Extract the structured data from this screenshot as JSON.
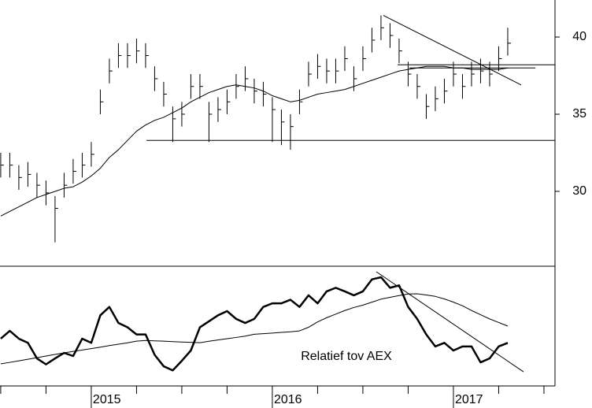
{
  "chart_data": [
    {
      "type": "ohlc",
      "x": [
        2014.5,
        2014.55,
        2014.6,
        2014.65,
        2014.7,
        2014.75,
        2014.8,
        2014.85,
        2014.9,
        2014.95,
        2015.0,
        2015.05,
        2015.1,
        2015.15,
        2015.2,
        2015.25,
        2015.3,
        2015.35,
        2015.4,
        2015.45,
        2015.5,
        2015.55,
        2015.6,
        2015.65,
        2015.7,
        2015.75,
        2015.8,
        2015.85,
        2015.9,
        2015.95,
        2016.0,
        2016.05,
        2016.1,
        2016.15,
        2016.2,
        2016.25,
        2016.3,
        2016.35,
        2016.4,
        2016.45,
        2016.5,
        2016.55,
        2016.6,
        2016.65,
        2016.7,
        2016.75,
        2016.8,
        2016.85,
        2016.9,
        2016.95,
        2017.0,
        2017.05,
        2017.1,
        2017.15,
        2017.2,
        2017.25,
        2017.3
      ],
      "high": [
        32.5,
        32.5,
        31.7,
        31.9,
        31.2,
        30.7,
        29.7,
        31.2,
        32.1,
        32.5,
        33.2,
        36.6,
        38.6,
        39.6,
        39.6,
        39.9,
        39.6,
        38.1,
        37.1,
        35.5,
        35.8,
        37.6,
        37.6,
        35.8,
        36.1,
        36.6,
        37.6,
        38.1,
        37.3,
        37.1,
        36.1,
        35.3,
        35.0,
        36.6,
        38.4,
        38.9,
        38.6,
        38.6,
        39.4,
        38.1,
        39.4,
        40.6,
        41.4,
        40.9,
        39.9,
        38.4,
        37.6,
        36.3,
        36.8,
        37.3,
        38.4,
        37.6,
        38.4,
        38.6,
        38.4,
        39.4,
        40.6
      ],
      "low": [
        30.9,
        30.9,
        30.1,
        30.3,
        29.6,
        29.1,
        26.7,
        29.6,
        30.5,
        30.9,
        31.6,
        35.0,
        37.0,
        38.0,
        38.0,
        38.3,
        38.0,
        36.5,
        35.5,
        33.2,
        34.2,
        36.0,
        36.0,
        33.2,
        34.5,
        35.0,
        36.0,
        36.5,
        35.7,
        35.5,
        33.2,
        33.0,
        32.7,
        35.0,
        36.8,
        37.3,
        37.0,
        37.0,
        37.8,
        36.5,
        37.8,
        39.0,
        39.8,
        39.3,
        38.3,
        36.8,
        36.0,
        34.7,
        35.2,
        35.7,
        36.8,
        36.0,
        36.8,
        37.0,
        36.8,
        37.8,
        38.8
      ],
      "close": [
        31.7,
        31.7,
        30.9,
        31.1,
        30.4,
        29.9,
        28.9,
        30.4,
        31.3,
        31.7,
        32.4,
        35.8,
        37.8,
        38.8,
        38.8,
        39.1,
        38.8,
        37.3,
        36.3,
        34.7,
        35.0,
        36.8,
        36.8,
        35.0,
        35.3,
        35.8,
        36.8,
        37.3,
        36.5,
        36.3,
        35.3,
        34.5,
        34.2,
        35.8,
        37.6,
        38.1,
        37.8,
        37.8,
        38.6,
        37.3,
        38.6,
        39.8,
        40.6,
        40.1,
        39.1,
        37.6,
        36.8,
        35.5,
        36.0,
        36.5,
        37.6,
        36.8,
        37.6,
        37.8,
        37.6,
        38.6,
        39.6
      ],
      "average": [
        28.4,
        28.7,
        29.0,
        29.3,
        29.6,
        29.8,
        30.0,
        30.2,
        30.3,
        30.6,
        31.0,
        31.5,
        32.2,
        32.7,
        33.3,
        33.9,
        34.3,
        34.6,
        34.8,
        35.1,
        35.4,
        35.8,
        36.1,
        36.4,
        36.6,
        36.8,
        36.9,
        36.8,
        36.7,
        36.5,
        36.2,
        36.0,
        35.8,
        35.9,
        36.1,
        36.3,
        36.4,
        36.5,
        36.6,
        36.8,
        37.0,
        37.2,
        37.4,
        37.6,
        37.8,
        37.9,
        38.0,
        38.1,
        38.1,
        38.1,
        38.0,
        38.0,
        37.9,
        37.9,
        37.9,
        37.9,
        38.0
      ],
      "color": "#000000",
      "lines": [
        {
          "x": [
            2015.305,
            2017.56
          ],
          "y": [
            33.3,
            33.3
          ]
        },
        {
          "x": [
            2016.692,
            2017.56
          ],
          "y": [
            38.2,
            38.2
          ]
        },
        {
          "x": [
            2016.757,
            2017.453
          ],
          "y": [
            38.0,
            38.0
          ]
        },
        {
          "x": [
            2016.613,
            2017.374
          ],
          "y": [
            41.4,
            36.9
          ]
        }
      ],
      "xlim": [
        2014.496,
        2017.561
      ],
      "ylim": [
        25.15,
        42.4
      ],
      "yticks": [
        30,
        35,
        40
      ]
    },
    {
      "type": "line",
      "x": [
        2014.5,
        2014.55,
        2014.6,
        2014.65,
        2014.7,
        2014.75,
        2014.8,
        2014.85,
        2014.9,
        2014.95,
        2015.0,
        2015.05,
        2015.1,
        2015.15,
        2015.2,
        2015.25,
        2015.3,
        2015.35,
        2015.4,
        2015.45,
        2015.5,
        2015.55,
        2015.6,
        2015.65,
        2015.7,
        2015.75,
        2015.8,
        2015.85,
        2015.9,
        2015.95,
        2016.0,
        2016.05,
        2016.1,
        2016.15,
        2016.2,
        2016.25,
        2016.3,
        2016.35,
        2016.4,
        2016.45,
        2016.5,
        2016.55,
        2016.6,
        2016.65,
        2016.7,
        2016.75,
        2016.8,
        2016.85,
        2016.9,
        2016.95,
        2017.0,
        2017.05,
        2017.1,
        2017.15,
        2017.2,
        2017.25,
        2017.3
      ],
      "values": [
        39.5,
        46,
        39.5,
        36,
        23,
        18,
        23,
        27.6,
        25,
        39.5,
        36,
        59,
        66,
        52.6,
        49,
        43,
        43,
        26,
        16.4,
        13,
        21,
        29.6,
        49,
        54,
        59,
        62.5,
        56,
        52.6,
        56,
        66,
        69,
        69,
        72,
        66,
        75.7,
        69,
        79,
        82,
        79,
        75.7,
        79,
        89,
        90.8,
        82,
        84,
        66,
        56,
        43,
        33,
        36,
        29.6,
        33,
        33,
        19.7,
        23,
        33,
        36
      ],
      "average": [
        18.4,
        19.7,
        21,
        22.3,
        23.6,
        25,
        26.3,
        27.6,
        28.9,
        30,
        31.2,
        32.4,
        33.7,
        34.9,
        36,
        37.4,
        38,
        37.7,
        37.4,
        37,
        36.7,
        36.4,
        36.1,
        37.3,
        38.4,
        39.5,
        40.5,
        41.6,
        43.2,
        43.7,
        44.2,
        44.7,
        45.2,
        46,
        49,
        53.5,
        57,
        60,
        63,
        65.5,
        67.5,
        70,
        72.5,
        74,
        75.5,
        76.8,
        77,
        76,
        74.8,
        72.7,
        70,
        67,
        63,
        59.5,
        56,
        53,
        50
      ],
      "color": "#000000",
      "lines": [
        {
          "x": [
            2016.574,
            2017.387
          ],
          "y": [
            95.4,
            11.8
          ]
        }
      ],
      "annotation": "Relatief tov AEX",
      "xlim": [
        2014.496,
        2017.561
      ],
      "ylim": [
        0,
        100
      ],
      "xticks": [
        2015,
        2016,
        2017
      ],
      "xminorticks": [
        2014.5,
        2014.75,
        2015.25,
        2015.5,
        2015.75,
        2016.25,
        2016.5,
        2016.75,
        2017.25,
        2017.5
      ]
    }
  ]
}
